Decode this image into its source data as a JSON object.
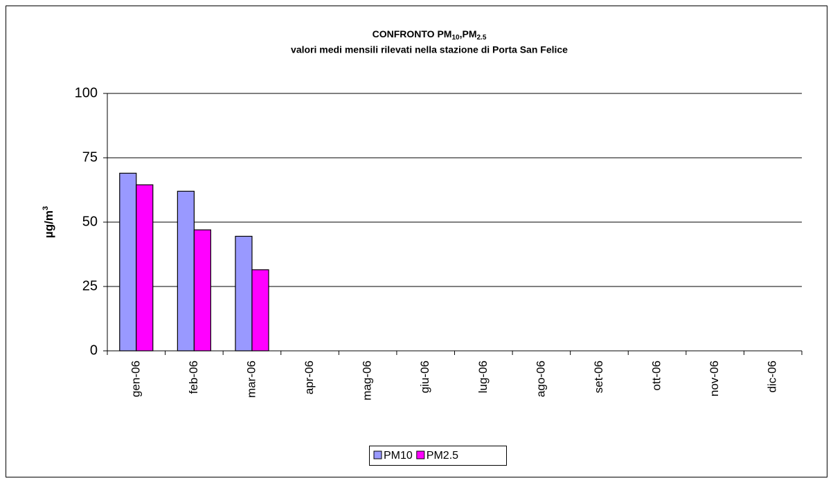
{
  "chart_data": {
    "type": "bar",
    "title": [
      "CONFRONTO PM",
      "10",
      ",PM",
      "2.5"
    ],
    "subtitle": "valori medi mensili rilevati nella stazione di Porta San Felice",
    "ylabel": [
      "µg/m",
      "3"
    ],
    "categories": [
      "gen-06",
      "feb-06",
      "mar-06",
      "apr-06",
      "mag-06",
      "giu-06",
      "lug-06",
      "ago-06",
      "set-06",
      "ott-06",
      "nov-06",
      "dic-06"
    ],
    "series": [
      {
        "name": "PM10",
        "color": "#9999ff",
        "values": [
          69,
          62,
          44.5,
          null,
          null,
          null,
          null,
          null,
          null,
          null,
          null,
          null
        ]
      },
      {
        "name": "PM2.5",
        "color": "#ff00ff",
        "values": [
          64.5,
          47,
          31.5,
          null,
          null,
          null,
          null,
          null,
          null,
          null,
          null,
          null
        ]
      }
    ],
    "ylim": [
      0,
      100
    ],
    "yticks": [
      0,
      25,
      50,
      75,
      100
    ],
    "grid": true,
    "legend": "bottom"
  }
}
